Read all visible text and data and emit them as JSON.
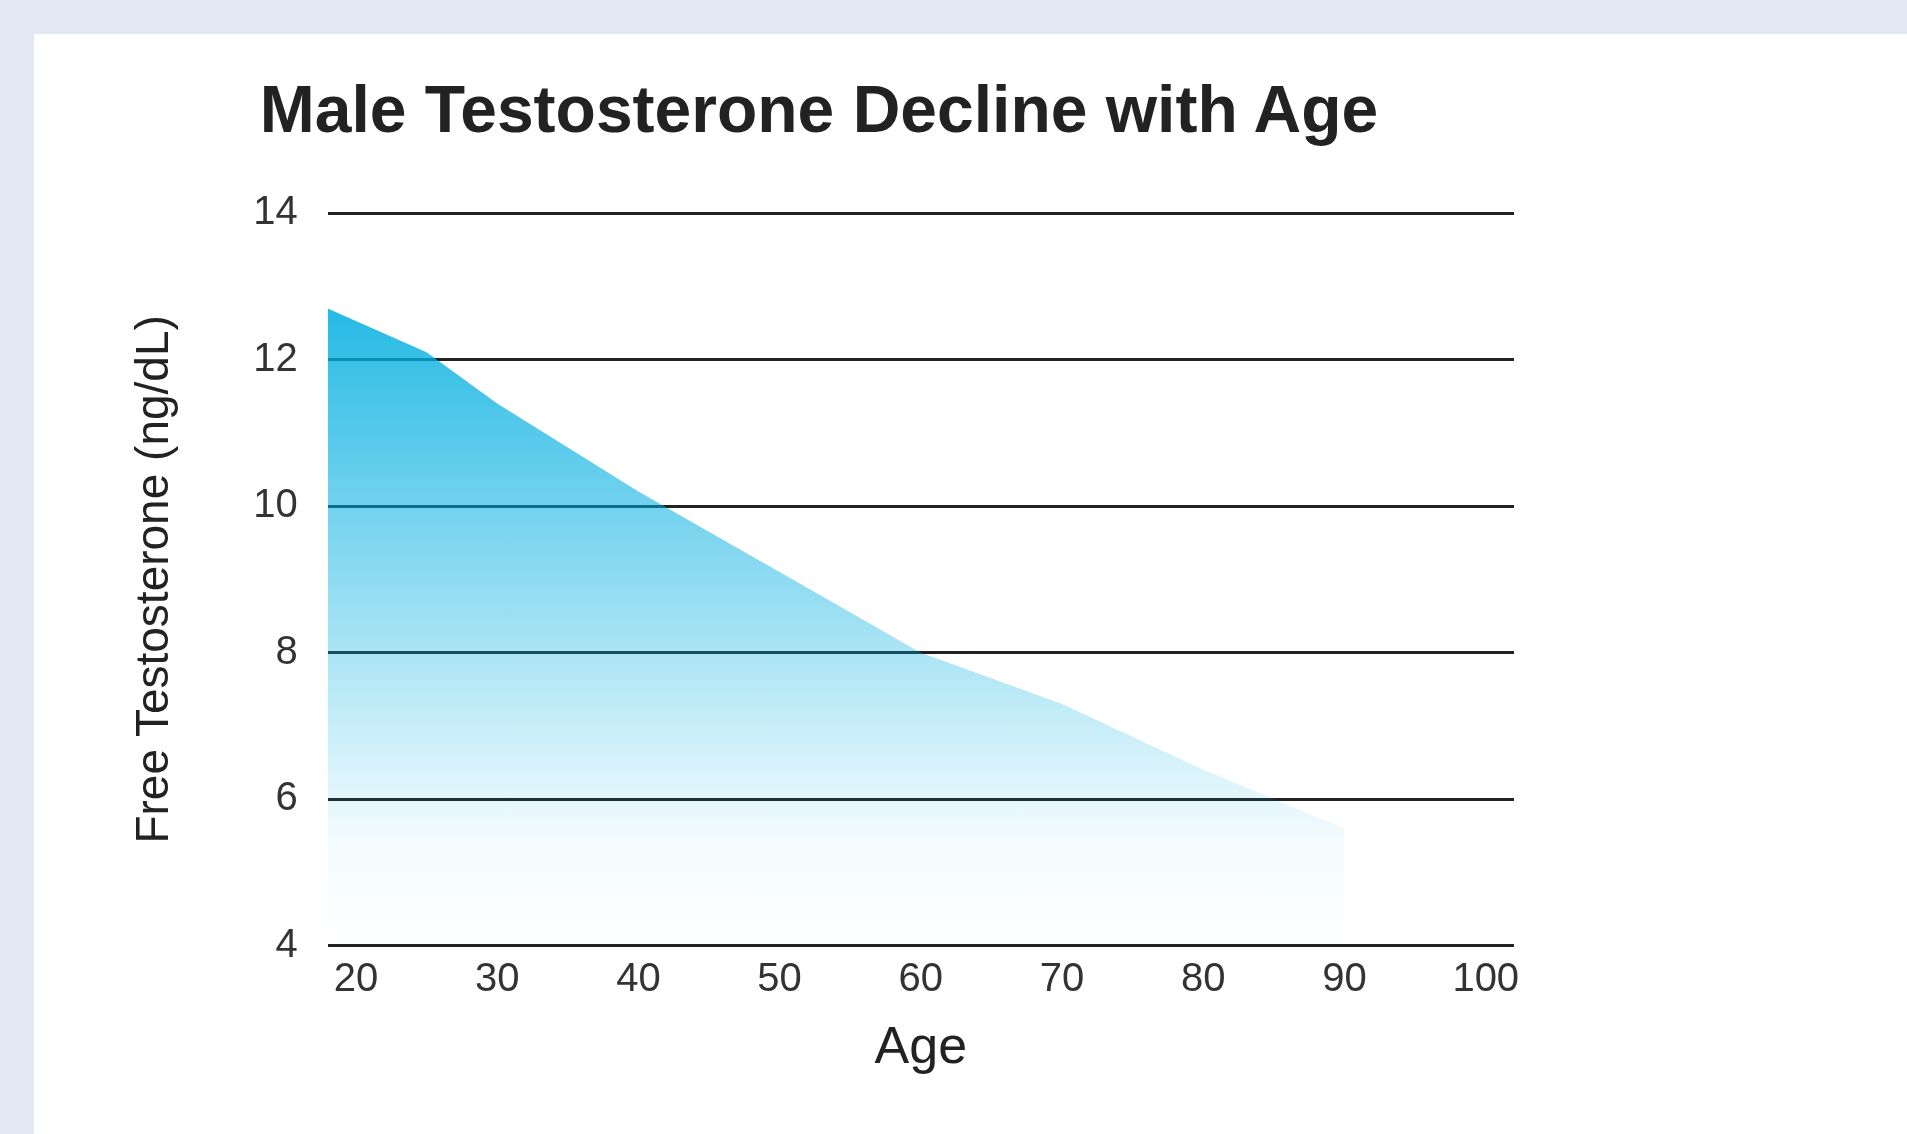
{
  "chart_data": {
    "type": "area",
    "title": "Male Testosterone Decline with Age",
    "xlabel": "Age",
    "ylabel": "Free Testosterone (ng/dL)",
    "x": [
      18,
      25,
      30,
      40,
      50,
      60,
      70,
      80,
      90
    ],
    "series": [
      {
        "color": "#00aee0",
        "values": [
          12.7,
          12.1,
          11.4,
          10.2,
          9.1,
          8.0,
          7.3,
          6.4,
          5.6
        ]
      }
    ],
    "xlim": [
      18,
      102
    ],
    "xticks": [
      20,
      30,
      40,
      50,
      60,
      70,
      80,
      90,
      100
    ],
    "ylim": [
      4,
      14
    ],
    "yticks": [
      4,
      6,
      8,
      10,
      12,
      14
    ],
    "grid": "y",
    "legend": false
  }
}
